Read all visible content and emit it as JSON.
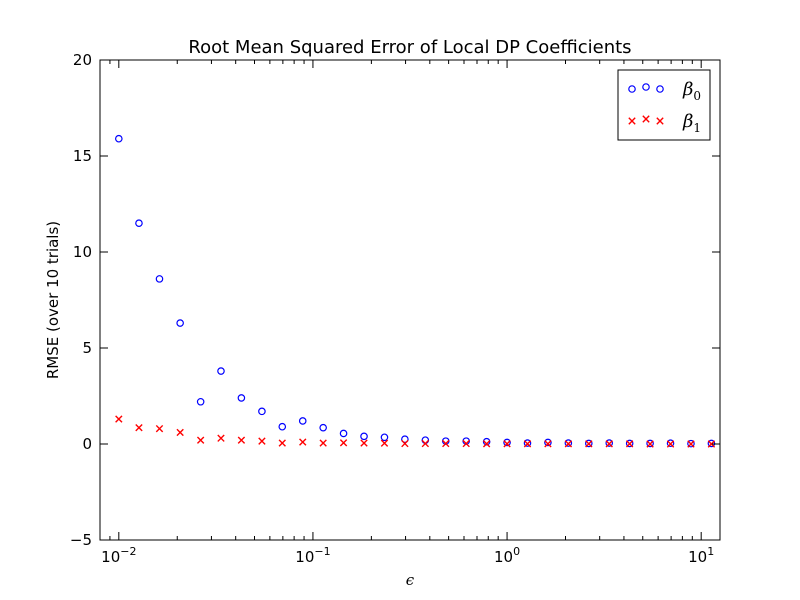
{
  "chart_data": {
    "type": "scatter",
    "title": "Root Mean Squared Error of Local DP Coefficients",
    "xlabel": "ϵ",
    "ylabel": "RMSE (over 10 trials)",
    "xscale": "log",
    "xlim": [
      0.008,
      12.5
    ],
    "ylim": [
      -5,
      20
    ],
    "yticks": [
      "20",
      "15",
      "10",
      "5",
      "0",
      "−5"
    ],
    "xticks": [
      {
        "base": "10",
        "exp": "−2",
        "value": 0.01
      },
      {
        "base": "10",
        "exp": "−1",
        "value": 0.1
      },
      {
        "base": "10",
        "exp": "0",
        "value": 1
      },
      {
        "base": "10",
        "exp": "1",
        "value": 10
      }
    ],
    "grid": false,
    "legend_position": "top-right",
    "x": [
      0.01,
      0.0127,
      0.0162,
      0.0207,
      0.0264,
      0.0336,
      0.0428,
      0.0546,
      0.0695,
      0.0886,
      0.1129,
      0.1438,
      0.1833,
      0.2336,
      0.2976,
      0.3793,
      0.4833,
      0.6158,
      0.7848,
      1.0,
      1.2743,
      1.6238,
      2.0691,
      2.6367,
      3.3598,
      4.2813,
      5.4556,
      6.9519,
      8.8587,
      11.288
    ],
    "series": [
      {
        "name": "β",
        "sub": "0",
        "marker": "circle",
        "color": "#0000ff",
        "values": [
          15.9,
          11.5,
          8.6,
          6.3,
          2.2,
          3.8,
          2.4,
          1.7,
          0.9,
          1.2,
          0.85,
          0.55,
          0.4,
          0.35,
          0.25,
          0.2,
          0.15,
          0.15,
          0.12,
          0.08,
          0.05,
          0.08,
          0.05,
          0.03,
          0.05,
          0.03,
          0.03,
          0.04,
          0.02,
          0.03
        ]
      },
      {
        "name": "β",
        "sub": "1",
        "marker": "x",
        "color": "#ff0000",
        "values": [
          1.3,
          0.85,
          0.8,
          0.6,
          0.2,
          0.3,
          0.2,
          0.15,
          0.05,
          0.1,
          0.05,
          0.06,
          0.05,
          0.04,
          0.02,
          0.02,
          0.02,
          0.02,
          0.01,
          0.01,
          0.01,
          0.01,
          0.01,
          0.01,
          0.01,
          0.01,
          0.0,
          0.0,
          0.0,
          0.0
        ]
      }
    ]
  }
}
